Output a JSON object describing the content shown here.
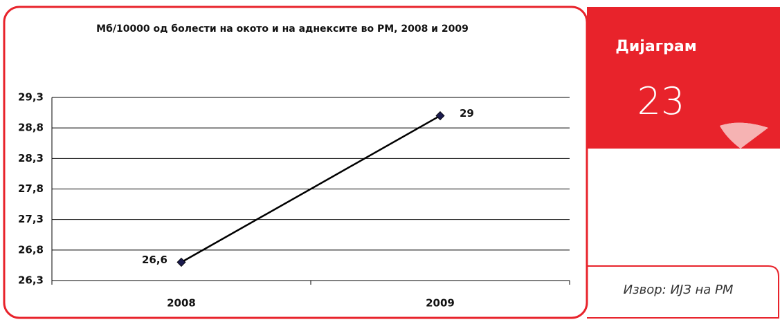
{
  "chart_data": {
    "type": "line",
    "title": "Мб/10000 од болести на окото и на аднексите во РМ, 2008 и 2009",
    "categories": [
      "2008",
      "2009"
    ],
    "series": [
      {
        "name": "Мб/10000",
        "color": "#000000",
        "marker_color": "#1b1b4d",
        "values": [
          26.6,
          29
        ],
        "value_labels": [
          "26,6",
          "29"
        ]
      }
    ],
    "ylim": [
      26.3,
      29.3
    ],
    "yticks": [
      {
        "value": 26.3,
        "label": "26,3"
      },
      {
        "value": 26.8,
        "label": "26,8"
      },
      {
        "value": 27.3,
        "label": "27,3"
      },
      {
        "value": 27.8,
        "label": "27,8"
      },
      {
        "value": 28.3,
        "label": "28,3"
      },
      {
        "value": 28.8,
        "label": "28,8"
      },
      {
        "value": 29.3,
        "label": "29,3"
      }
    ],
    "grid": true
  },
  "panel": {
    "label": "Дијаграм",
    "number": "23",
    "source": "Извор: ИЈЗ на РМ"
  }
}
